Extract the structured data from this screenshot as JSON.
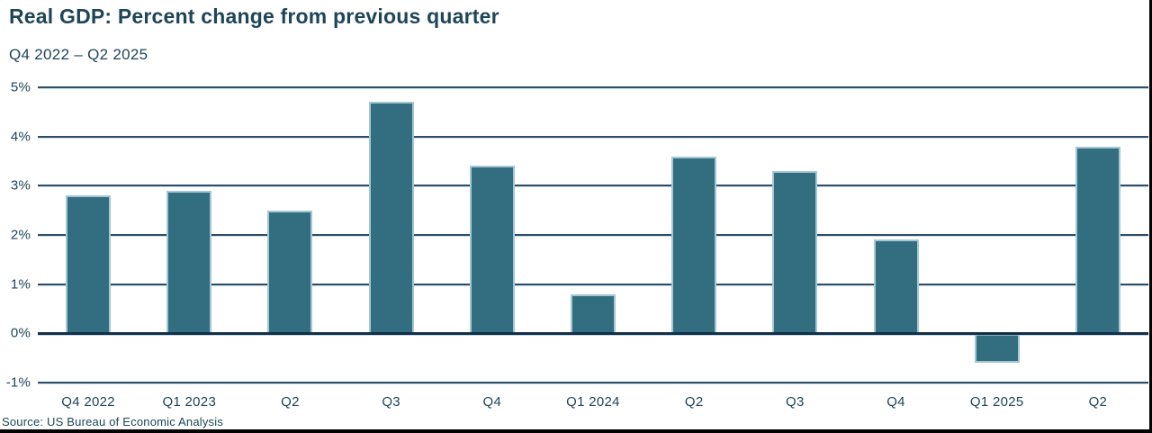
{
  "chart_data": {
    "type": "bar",
    "title": "Real GDP: Percent change from previous quarter",
    "subtitle": "Q4 2022 – Q2 2025",
    "categories": [
      "Q4 2022",
      "Q1 2023",
      "Q2",
      "Q3",
      "Q4",
      "Q1 2024",
      "Q2",
      "Q3",
      "Q4",
      "Q1 2025",
      "Q2"
    ],
    "values": [
      2.8,
      2.9,
      2.5,
      4.7,
      3.4,
      0.8,
      3.6,
      3.3,
      1.9,
      -0.6,
      3.8
    ],
    "xlabel": "",
    "ylabel": "",
    "ylim": [
      -1,
      5
    ],
    "y_ticks": [
      {
        "value": 5,
        "label": "5%"
      },
      {
        "value": 4,
        "label": "4%"
      },
      {
        "value": 3,
        "label": "3%"
      },
      {
        "value": 2,
        "label": "2%"
      },
      {
        "value": 1,
        "label": "1%"
      },
      {
        "value": 0,
        "label": "0%"
      },
      {
        "value": -1,
        "label": "-1%"
      }
    ],
    "grid": true,
    "legend": false,
    "source": "Source: US Bureau of Economic Analysis"
  },
  "colors": {
    "text": "#1E4558",
    "bar_fill": "#336E80",
    "bar_stroke": "#A4C7D5",
    "gridline": "#2E4D68",
    "zero_axis": "#132F47",
    "screen_edge": "#000000"
  }
}
